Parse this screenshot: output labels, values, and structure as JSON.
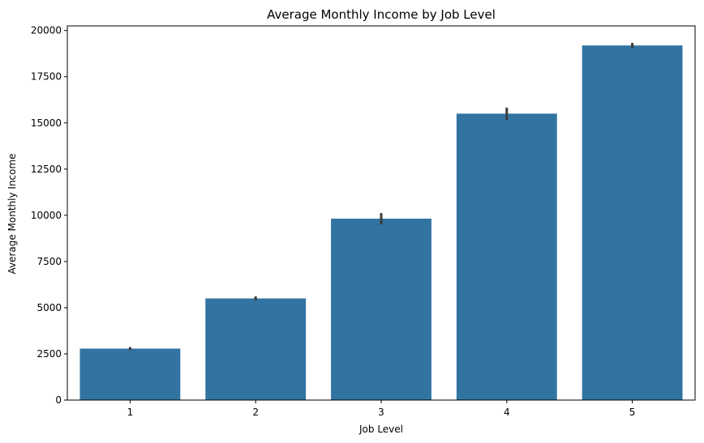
{
  "chart_data": {
    "type": "bar",
    "title": "Average Monthly Income by Job Level",
    "xlabel": "Job Level",
    "ylabel": "Average Monthly Income",
    "categories": [
      "1",
      "2",
      "3",
      "4",
      "5"
    ],
    "values": [
      2786,
      5502,
      9817,
      15503,
      19192
    ],
    "error_low": [
      2700,
      5390,
      9500,
      15150,
      19050
    ],
    "error_high": [
      2870,
      5610,
      10120,
      15830,
      19330
    ],
    "ylim": [
      0,
      20250
    ],
    "yticks": [
      0,
      2500,
      5000,
      7500,
      10000,
      12500,
      15000,
      17500,
      20000
    ],
    "ytick_labels": [
      "0",
      "2500",
      "5000",
      "7500",
      "10000",
      "12500",
      "15000",
      "17500",
      "20000"
    ],
    "grid": false,
    "bar_color": "#3274a1",
    "errorbar_color": "#3c3c3c"
  }
}
